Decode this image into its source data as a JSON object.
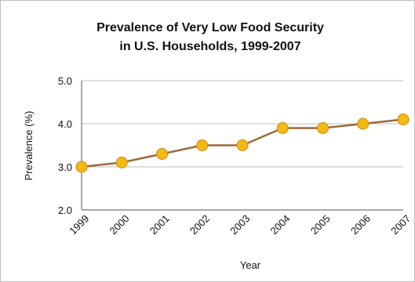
{
  "chart_data": {
    "type": "line",
    "title_line1": "Prevalence of Very Low Food Security",
    "title_line2": "in U.S. Households, 1999-2007",
    "xlabel": "Year",
    "ylabel": "Prevalence (%)",
    "categories": [
      "1999",
      "2000",
      "2001",
      "2002",
      "2003",
      "2004",
      "2005",
      "2006",
      "2007"
    ],
    "values": [
      3.0,
      3.1,
      3.3,
      3.5,
      3.5,
      3.9,
      3.9,
      4.0,
      4.1
    ],
    "ylim": [
      2.0,
      5.0
    ],
    "yticks": [
      "2.0",
      "3.0",
      "4.0",
      "5.0"
    ],
    "grid": "horizontal",
    "legend": "none",
    "colors": {
      "line": "#9b6a3a",
      "marker_fill": "#f5b916",
      "marker_stroke": "#c98a10",
      "grid": "#bdbdbd",
      "axis": "#555555"
    }
  }
}
